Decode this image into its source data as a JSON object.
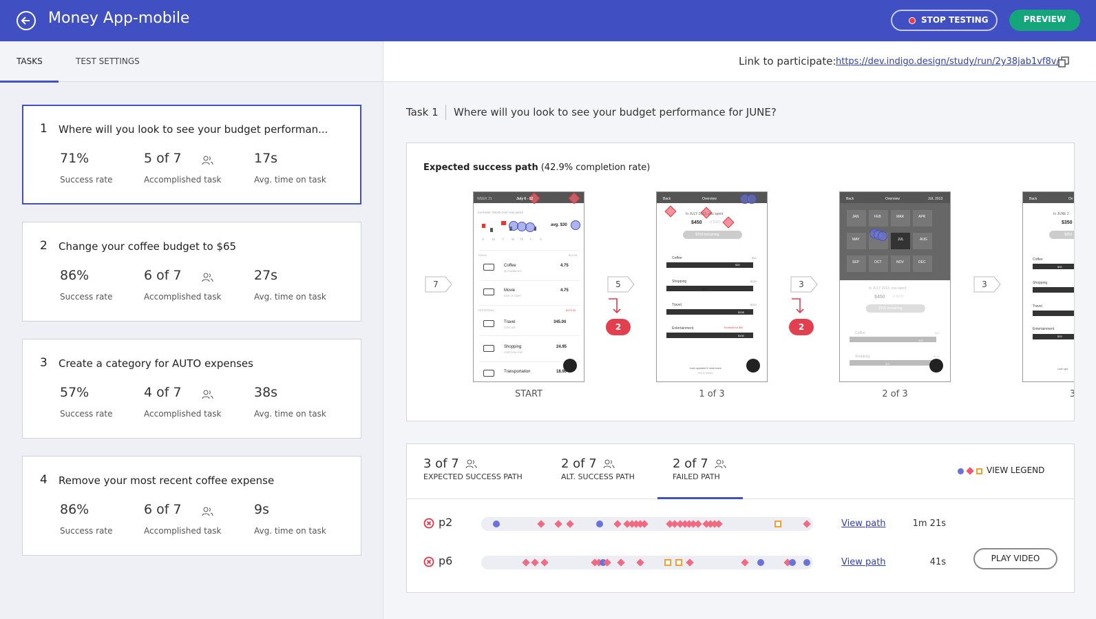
{
  "header": {
    "title": "Money App-mobile",
    "stop_button": "STOP TESTING",
    "preview_button": "PREVIEW"
  },
  "tabs": [
    "TASKS",
    "TEST SETTINGS"
  ],
  "link": {
    "label": "Link to participate:",
    "url": "https://dev.indigo.design/study/run/2y38jab1vf8v/"
  },
  "tasks": [
    {
      "number": "1",
      "title": "Where will you look to see your budget performan...",
      "stats": [
        {
          "value": "71%",
          "label": "Success rate"
        },
        {
          "value": "5 of 7",
          "label": "Accomplished task"
        },
        {
          "value": "17s",
          "label": "Avg. time on task"
        }
      ]
    },
    {
      "number": "2",
      "title": "Change your coffee budget to $65",
      "stats": [
        {
          "value": "86%",
          "label": "Success rate"
        },
        {
          "value": "6 of 7",
          "label": "Accomplished task"
        },
        {
          "value": "27s",
          "label": "Avg. time on task"
        }
      ]
    },
    {
      "number": "3",
      "title": "Create a category for AUTO expenses",
      "stats": [
        {
          "value": "57%",
          "label": "Success rate"
        },
        {
          "value": "4 of 7",
          "label": "Accomplished task"
        },
        {
          "value": "38s",
          "label": "Avg. time on task"
        }
      ]
    },
    {
      "number": "4",
      "title": "Remove your most recent coffee expense",
      "stats": [
        {
          "value": "86%",
          "label": "Success rate"
        },
        {
          "value": "6 of 7",
          "label": "Accomplished task"
        },
        {
          "value": "9s",
          "label": "Avg. time on task"
        }
      ]
    }
  ],
  "task_detail": {
    "label": "Task 1",
    "question": "Where will you look to see your budget performance for JUNE?"
  },
  "success_path": {
    "heading": "Expected success path",
    "note": "(42.9% completion rate)",
    "entries": [
      "7",
      "5",
      "3",
      "3"
    ],
    "dropoffs": [
      "2",
      "2"
    ],
    "captions": [
      "START",
      "1 of 3",
      "2 of 3",
      "3"
    ],
    "screens": [
      {
        "texts": [
          "WEEK 31",
          "July 6 - 12",
          "EXPENSE TREND FOR THIS WEEK",
          "avg. $30",
          "S",
          "M",
          "T",
          "W",
          "Th",
          "F",
          "S",
          "TODAY",
          "$19.25",
          "Coffee",
          "@ STARBUCKS",
          "4.75",
          "Movie",
          "RISE OF GORT",
          "4.75",
          "YESTERDAY",
          "$375.25",
          "Travel",
          "GORT AIR",
          "345.00",
          "Shopping",
          "GORTZON.COM",
          "24.95",
          "Transportation",
          "18.90"
        ]
      },
      {
        "texts": [
          "Back",
          "Overview",
          "In JULY 2013, you spent",
          "$450",
          "of $600",
          "$150 remaining",
          "Coffee",
          "$45",
          "$30",
          "Shopping",
          "$150",
          "$80",
          "Travel",
          "$300",
          "$295",
          "Entertainment",
          "Exceeded by $90",
          "$150",
          "Last updated 5 mins back",
          "Pull to refresh"
        ]
      },
      {
        "texts": [
          "Back",
          "Overview",
          "JUL 2013",
          "JAN",
          "FEB",
          "MAR",
          "APR",
          "MAY",
          "JUL",
          "AUG",
          "SEP",
          "OCT",
          "NOV",
          "DEC",
          "In JULY 2013, you spent",
          "$450",
          "of $600",
          "$150 remaining",
          "Coffee",
          "$45",
          "$30",
          "Shopping",
          "$150",
          "$80"
        ]
      },
      {
        "texts": [
          "Back",
          "Ov",
          "In JUNE 2",
          "$350",
          "$250",
          "Coffee",
          "$30",
          "Shopping",
          "Travel",
          "Entertainment",
          "$25",
          "Last upd"
        ]
      }
    ]
  },
  "results": {
    "tabs": [
      {
        "count": "3 of 7",
        "label": "EXPECTED SUCCESS PATH"
      },
      {
        "count": "2 of 7",
        "label": "ALT. SUCCESS PATH"
      },
      {
        "count": "2 of 7",
        "label": "FAILED PATH"
      }
    ],
    "legend": "VIEW LEGEND",
    "participants": [
      {
        "id": "p2",
        "link": "View path",
        "time": "1m 21s"
      },
      {
        "id": "p6",
        "link": "View path",
        "time": "41s",
        "button": "PLAY VIDEO"
      }
    ]
  }
}
